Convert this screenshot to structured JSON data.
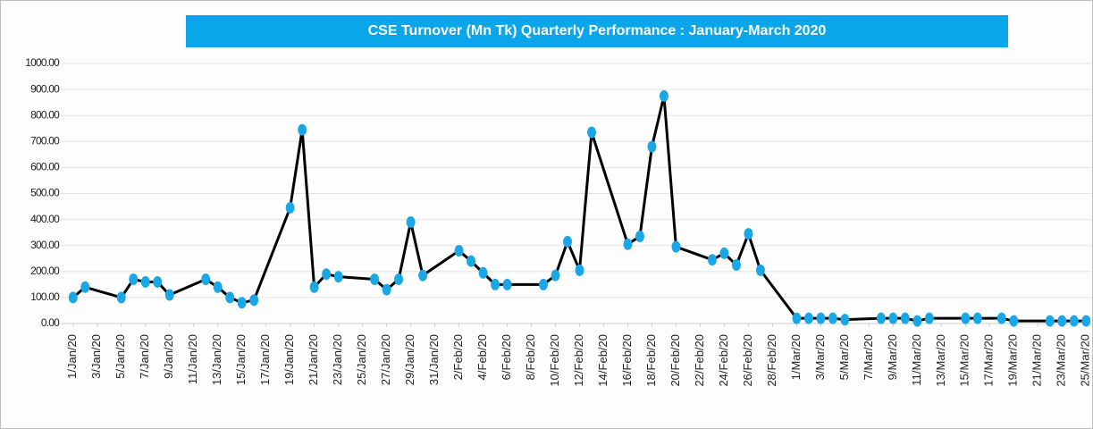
{
  "chart_data": {
    "type": "line",
    "title": "CSE Turnover (Mn Tk) Quarterly Performance : January-March 2020",
    "x": [
      1,
      2,
      5,
      6,
      7,
      8,
      9,
      12,
      13,
      14,
      15,
      16,
      19,
      20,
      21,
      22,
      23,
      26,
      27,
      28,
      29,
      30,
      33,
      34,
      35,
      36,
      37,
      40,
      41,
      42,
      43,
      44,
      47,
      48,
      49,
      50,
      51,
      54,
      55,
      56,
      57,
      58,
      61,
      62,
      63,
      64,
      65,
      68,
      69,
      70,
      71,
      72,
      75,
      76,
      78,
      79,
      82,
      83,
      84,
      85
    ],
    "series": [
      {
        "name": "CSE Turnover",
        "color": "#000000",
        "marker_color": "#1aa7e6",
        "values": [
          100,
          140,
          100,
          170,
          160,
          160,
          110,
          170,
          140,
          100,
          80,
          90,
          445,
          745,
          140,
          190,
          180,
          170,
          130,
          170,
          390,
          185,
          280,
          240,
          195,
          150,
          150,
          150,
          185,
          315,
          205,
          735,
          305,
          335,
          680,
          875,
          295,
          245,
          270,
          225,
          345,
          205,
          20,
          20,
          20,
          20,
          15,
          20,
          20,
          20,
          10,
          20,
          20,
          20,
          20,
          10,
          10,
          10,
          10,
          10
        ]
      }
    ],
    "xlim": [
      0.5,
      85.5
    ],
    "xticks": [
      {
        "value": 1,
        "label": "1/Jan/20"
      },
      {
        "value": 3,
        "label": "3/Jan/20"
      },
      {
        "value": 5,
        "label": "5/Jan/20"
      },
      {
        "value": 7,
        "label": "7/Jan/20"
      },
      {
        "value": 9,
        "label": "9/Jan/20"
      },
      {
        "value": 11,
        "label": "11/Jan/20"
      },
      {
        "value": 13,
        "label": "13/Jan/20"
      },
      {
        "value": 15,
        "label": "15/Jan/20"
      },
      {
        "value": 17,
        "label": "17/Jan/20"
      },
      {
        "value": 19,
        "label": "19/Jan/20"
      },
      {
        "value": 21,
        "label": "21/Jan/20"
      },
      {
        "value": 23,
        "label": "23/Jan/20"
      },
      {
        "value": 25,
        "label": "25/Jan/20"
      },
      {
        "value": 27,
        "label": "27/Jan/20"
      },
      {
        "value": 29,
        "label": "29/Jan/20"
      },
      {
        "value": 31,
        "label": "31/Jan/20"
      },
      {
        "value": 33,
        "label": "2/Feb/20"
      },
      {
        "value": 35,
        "label": "4/Feb/20"
      },
      {
        "value": 37,
        "label": "6/Feb/20"
      },
      {
        "value": 39,
        "label": "8/Feb/20"
      },
      {
        "value": 41,
        "label": "10/Feb/20"
      },
      {
        "value": 43,
        "label": "12/Feb/20"
      },
      {
        "value": 45,
        "label": "14/Feb/20"
      },
      {
        "value": 47,
        "label": "16/Feb/20"
      },
      {
        "value": 49,
        "label": "18/Feb/20"
      },
      {
        "value": 51,
        "label": "20/Feb/20"
      },
      {
        "value": 53,
        "label": "22/Feb/20"
      },
      {
        "value": 55,
        "label": "24/Feb/20"
      },
      {
        "value": 57,
        "label": "26/Feb/20"
      },
      {
        "value": 59,
        "label": "28/Feb/20"
      },
      {
        "value": 61,
        "label": "1/Mar/20"
      },
      {
        "value": 63,
        "label": "3/Mar/20"
      },
      {
        "value": 65,
        "label": "5/Mar/20"
      },
      {
        "value": 67,
        "label": "7/Mar/20"
      },
      {
        "value": 69,
        "label": "9/Mar/20"
      },
      {
        "value": 71,
        "label": "11/Mar/20"
      },
      {
        "value": 73,
        "label": "13/Mar/20"
      },
      {
        "value": 75,
        "label": "15/Mar/20"
      },
      {
        "value": 77,
        "label": "17/Mar/20"
      },
      {
        "value": 79,
        "label": "19/Mar/20"
      },
      {
        "value": 81,
        "label": "21/Mar/20"
      },
      {
        "value": 83,
        "label": "23/Mar/20"
      },
      {
        "value": 85,
        "label": "25/Mar/20"
      }
    ],
    "ylim": [
      0,
      1000
    ],
    "yticks": [
      {
        "value": 0,
        "label": "0.00"
      },
      {
        "value": 100,
        "label": "100.00"
      },
      {
        "value": 200,
        "label": "200.00"
      },
      {
        "value": 300,
        "label": "300.00"
      },
      {
        "value": 400,
        "label": "400.00"
      },
      {
        "value": 500,
        "label": "500.00"
      },
      {
        "value": 600,
        "label": "600.00"
      },
      {
        "value": 700,
        "label": "700.00"
      },
      {
        "value": 800,
        "label": "800.00"
      },
      {
        "value": 900,
        "label": "900.00"
      },
      {
        "value": 1000,
        "label": "1000.00"
      }
    ],
    "grid": true,
    "title_background": "#0aa6ea"
  }
}
